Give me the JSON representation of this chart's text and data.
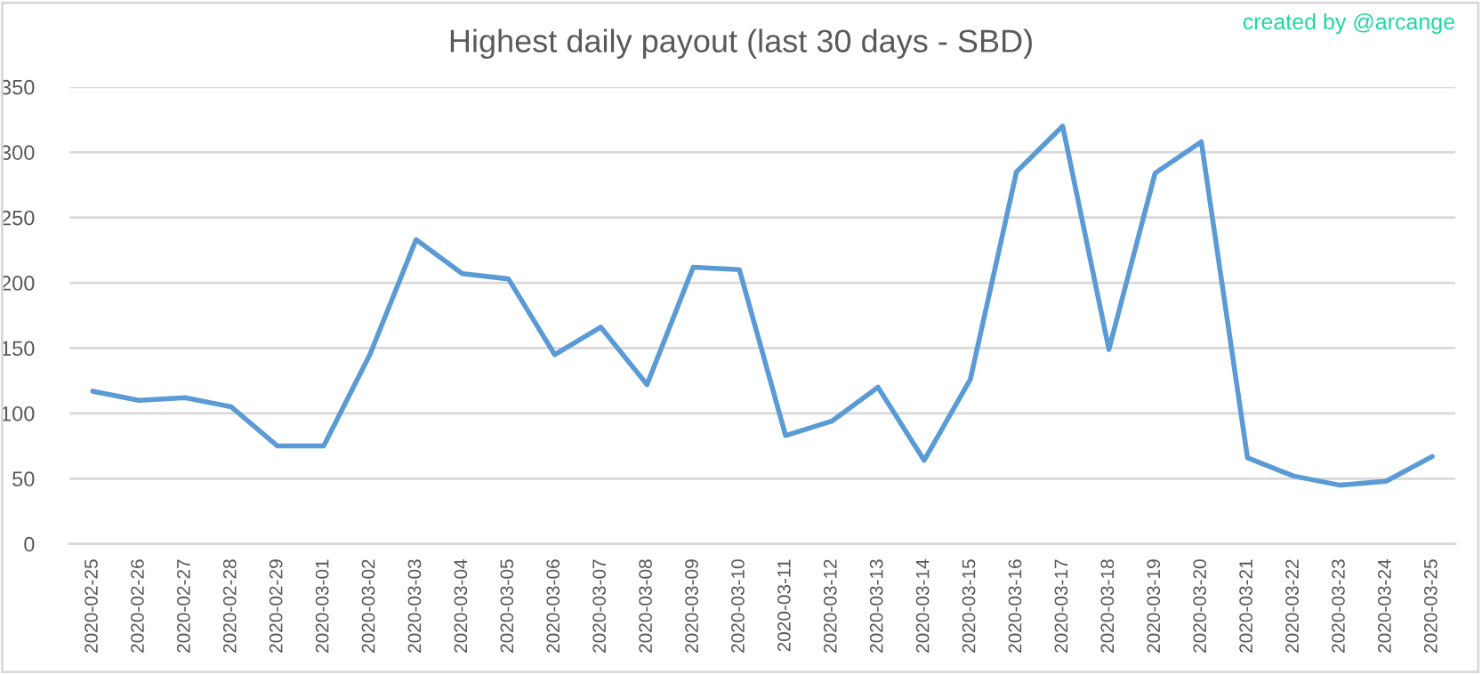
{
  "chart_data": {
    "type": "line",
    "title": "Highest daily payout (last 30 days - SBD)",
    "categories": [
      "2020-02-25",
      "2020-02-26",
      "2020-02-27",
      "2020-02-28",
      "2020-02-29",
      "2020-03-01",
      "2020-03-02",
      "2020-03-03",
      "2020-03-04",
      "2020-03-05",
      "2020-03-06",
      "2020-03-07",
      "2020-03-08",
      "2020-03-09",
      "2020-03-10",
      "2020-03-11",
      "2020-03-12",
      "2020-03-13",
      "2020-03-14",
      "2020-03-15",
      "2020-03-16",
      "2020-03-17",
      "2020-03-18",
      "2020-03-19",
      "2020-03-20",
      "2020-03-21",
      "2020-03-22",
      "2020-03-23",
      "2020-03-24",
      "2020-03-25"
    ],
    "series": [
      {
        "color": "#5b9bd5",
        "values": [
          117,
          110,
          112,
          105,
          75,
          75,
          145,
          233,
          207,
          203,
          145,
          166,
          122,
          212,
          210,
          83,
          94,
          120,
          64,
          126,
          285,
          320,
          149,
          284,
          308,
          66,
          52,
          45,
          48,
          67
        ]
      }
    ],
    "ylim": [
      0,
      350
    ],
    "yticks": [
      0,
      50,
      100,
      150,
      200,
      250,
      300,
      350
    ],
    "grid": "y",
    "line_style": "solid",
    "annotations": [
      "created by @arcange"
    ]
  }
}
